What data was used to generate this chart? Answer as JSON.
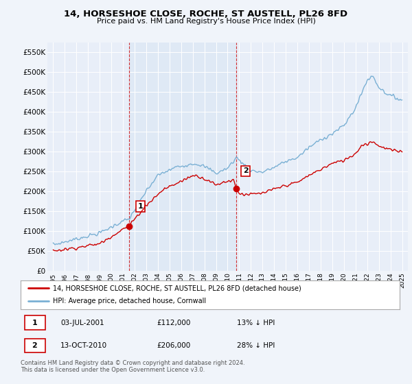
{
  "title": "14, HORSESHOE CLOSE, ROCHE, ST AUSTELL, PL26 8FD",
  "subtitle": "Price paid vs. HM Land Registry's House Price Index (HPI)",
  "ylim": [
    0,
    575000
  ],
  "yticks": [
    0,
    50000,
    100000,
    150000,
    200000,
    250000,
    300000,
    350000,
    400000,
    450000,
    500000,
    550000
  ],
  "ytick_labels": [
    "£0",
    "£50K",
    "£100K",
    "£150K",
    "£200K",
    "£250K",
    "£300K",
    "£350K",
    "£400K",
    "£450K",
    "£500K",
    "£550K"
  ],
  "hpi_color": "#7ab0d4",
  "price_color": "#cc0000",
  "vline_color": "#cc0000",
  "shade_color": "#dce8f5",
  "point1_year": 2001.5,
  "point1_value": 112000,
  "point2_year": 2010.75,
  "point2_value": 206000,
  "legend_house": "14, HORSESHOE CLOSE, ROCHE, ST AUSTELL, PL26 8FD (detached house)",
  "legend_hpi": "HPI: Average price, detached house, Cornwall",
  "annotation1_label": "1",
  "annotation1_date": "03-JUL-2001",
  "annotation1_price": "£112,000",
  "annotation1_pct": "13% ↓ HPI",
  "annotation2_label": "2",
  "annotation2_date": "13-OCT-2010",
  "annotation2_price": "£206,000",
  "annotation2_pct": "28% ↓ HPI",
  "footnote": "Contains HM Land Registry data © Crown copyright and database right 2024.\nThis data is licensed under the Open Government Licence v3.0.",
  "background_color": "#f0f4fa",
  "plot_bg_color": "#e8eef8",
  "grid_color": "#c8d4e8"
}
